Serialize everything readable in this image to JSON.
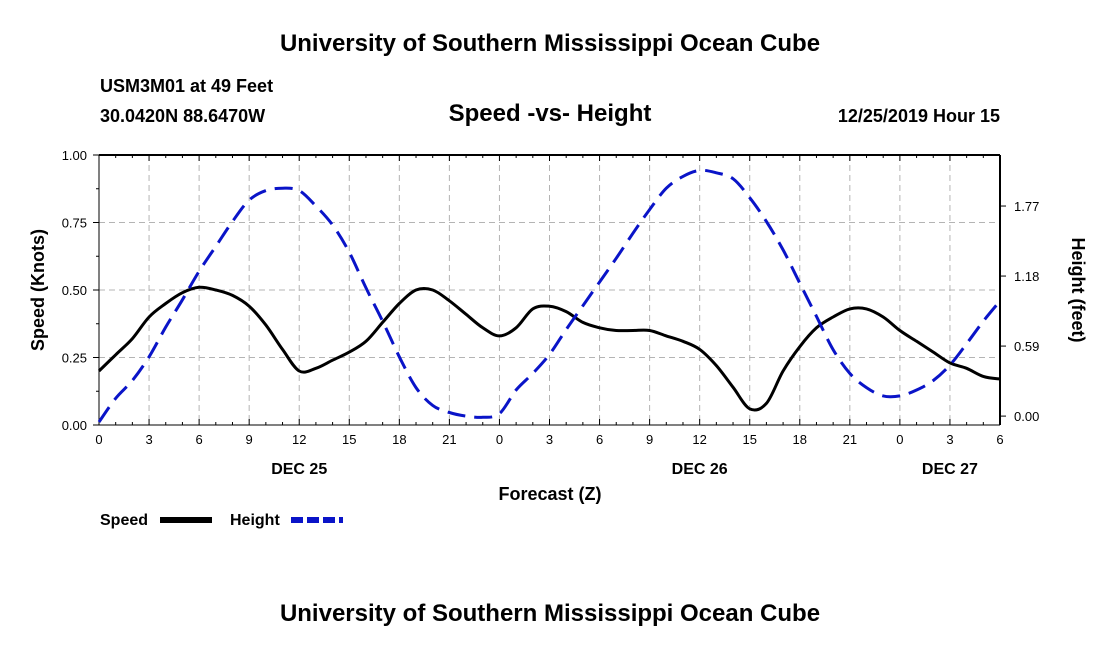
{
  "header": {
    "title_top": "University of Southern Mississippi Ocean Cube",
    "station": "USM3M01 at 49 Feet",
    "location": "30.0420N 88.6470W",
    "chart_title": "Speed -vs- Height",
    "datetime": "12/25/2019 Hour 15"
  },
  "footer": {
    "title_bottom": "University of Southern Mississippi Ocean Cube"
  },
  "colors": {
    "speed": "#000000",
    "height": "#0a14c8",
    "grid": "#b4b4b4"
  },
  "chart_data": {
    "type": "line",
    "title": "Speed -vs- Height",
    "xlabel": "Forecast (Z)",
    "ylabel_left": "Speed (Knots)",
    "ylabel_right": "Height (feet)",
    "x_unit": "hours since DEC 25 00Z",
    "xlim": [
      0,
      54
    ],
    "ylim_left": [
      0,
      1.0
    ],
    "ylim_right": [
      -0.075,
      2.2
    ],
    "x_ticks": [
      0,
      3,
      6,
      9,
      12,
      15,
      18,
      21,
      24,
      27,
      30,
      33,
      36,
      39,
      42,
      45,
      48,
      51,
      54
    ],
    "x_tick_labels": [
      "0",
      "3",
      "6",
      "9",
      "12",
      "15",
      "18",
      "21",
      "0",
      "3",
      "6",
      "9",
      "12",
      "15",
      "18",
      "21",
      "0",
      "3",
      "6"
    ],
    "day_labels": [
      {
        "x": 12,
        "label": "DEC 25"
      },
      {
        "x": 36,
        "label": "DEC 26"
      },
      {
        "x": 51,
        "label": "DEC 27"
      }
    ],
    "y_ticks_left": [
      0.0,
      0.25,
      0.5,
      0.75,
      1.0
    ],
    "y_tick_labels_left": [
      "0.00",
      "0.25",
      "0.50",
      "0.75",
      "1.00"
    ],
    "y_ticks_right": [
      0.0,
      0.59,
      1.18,
      1.77
    ],
    "y_tick_labels_right": [
      "0.00",
      "0.59",
      "1.18",
      "1.77"
    ],
    "series": [
      {
        "name": "Speed",
        "axis": "left",
        "style": "solid",
        "x": [
          0,
          1,
          2,
          3,
          4,
          5,
          6,
          7,
          8,
          9,
          10,
          11,
          12,
          13,
          14,
          15,
          16,
          17,
          18,
          19,
          20,
          21,
          22,
          23,
          24,
          25,
          26,
          27,
          28,
          29,
          30,
          31,
          32,
          33,
          34,
          35,
          36,
          37,
          38,
          39,
          40,
          41,
          42,
          43,
          44,
          45,
          46,
          47,
          48,
          49,
          50,
          51,
          52,
          53,
          54
        ],
        "values": [
          0.2,
          0.26,
          0.32,
          0.4,
          0.45,
          0.49,
          0.51,
          0.5,
          0.48,
          0.44,
          0.37,
          0.28,
          0.2,
          0.21,
          0.24,
          0.27,
          0.31,
          0.38,
          0.45,
          0.5,
          0.5,
          0.46,
          0.41,
          0.36,
          0.33,
          0.36,
          0.43,
          0.44,
          0.42,
          0.38,
          0.36,
          0.35,
          0.35,
          0.35,
          0.33,
          0.31,
          0.28,
          0.22,
          0.14,
          0.06,
          0.08,
          0.2,
          0.29,
          0.36,
          0.4,
          0.43,
          0.43,
          0.4,
          0.35,
          0.31,
          0.27,
          0.23,
          0.21,
          0.18,
          0.17
        ]
      },
      {
        "name": "Height",
        "axis": "right",
        "style": "dashed",
        "x": [
          0,
          1,
          2,
          3,
          4,
          5,
          6,
          7,
          8,
          9,
          10,
          11,
          12,
          13,
          14,
          15,
          16,
          17,
          18,
          19,
          20,
          21,
          22,
          23,
          24,
          25,
          26,
          27,
          28,
          29,
          30,
          31,
          32,
          33,
          34,
          35,
          36,
          37,
          38,
          39,
          40,
          41,
          42,
          43,
          44,
          45,
          46,
          47,
          48,
          49,
          50,
          51,
          52,
          53,
          54
        ],
        "values": [
          -0.05,
          0.15,
          0.3,
          0.5,
          0.75,
          0.98,
          1.22,
          1.43,
          1.64,
          1.82,
          1.9,
          1.92,
          1.9,
          1.77,
          1.61,
          1.38,
          1.08,
          0.8,
          0.5,
          0.24,
          0.09,
          0.03,
          0.0,
          -0.01,
          0.02,
          0.22,
          0.36,
          0.52,
          0.73,
          0.93,
          1.13,
          1.33,
          1.54,
          1.74,
          1.92,
          2.02,
          2.07,
          2.05,
          2.0,
          1.84,
          1.64,
          1.4,
          1.12,
          0.84,
          0.56,
          0.36,
          0.24,
          0.17,
          0.17,
          0.22,
          0.3,
          0.43,
          0.61,
          0.8,
          0.97
        ]
      }
    ],
    "legend": [
      {
        "label": "Speed",
        "style": "solid"
      },
      {
        "label": "Height",
        "style": "dashed"
      }
    ]
  }
}
